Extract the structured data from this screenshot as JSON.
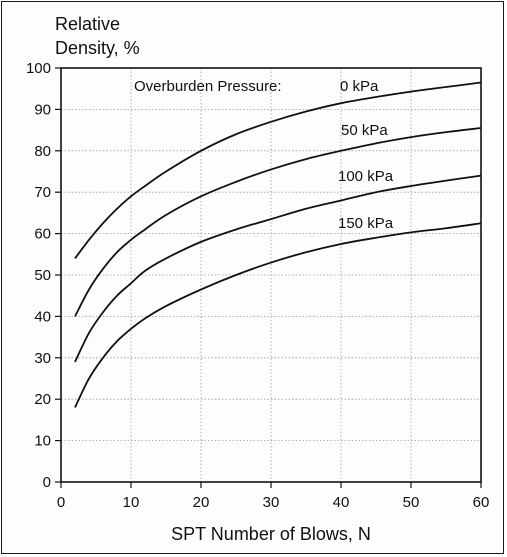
{
  "chart_data": {
    "type": "line",
    "title_lines": [
      "Relative",
      "Density,  %"
    ],
    "xlabel": "SPT Number of Blows,  N",
    "ylabel": "Relative Density, %",
    "xlim": [
      0,
      60
    ],
    "ylim": [
      0,
      100
    ],
    "xticks": [
      0,
      10,
      20,
      30,
      40,
      50,
      60
    ],
    "yticks": [
      0,
      10,
      20,
      30,
      40,
      50,
      60,
      70,
      80,
      90,
      100
    ],
    "grid": true,
    "legend_title": "Overburden Pressure:",
    "series": [
      {
        "name": "0 kPa",
        "x": [
          2,
          4,
          6,
          8,
          10,
          12,
          15,
          20,
          25,
          30,
          35,
          40,
          45,
          50,
          55,
          60
        ],
        "y": [
          54,
          58.5,
          62.5,
          66,
          69,
          71.5,
          75,
          80,
          84,
          87,
          89.5,
          91.5,
          93,
          94.3,
          95.4,
          96.5
        ]
      },
      {
        "name": "50 kPa",
        "x": [
          2,
          4,
          6,
          8,
          10,
          12,
          15,
          20,
          25,
          30,
          35,
          40,
          45,
          50,
          55,
          60
        ],
        "y": [
          40,
          46.5,
          51.5,
          55.5,
          58.5,
          61,
          64.5,
          69,
          72.5,
          75.5,
          78,
          80,
          81.8,
          83.3,
          84.5,
          85.5
        ]
      },
      {
        "name": "100 kPa",
        "x": [
          2,
          4,
          6,
          8,
          10,
          12,
          15,
          20,
          25,
          30,
          35,
          40,
          45,
          50,
          55,
          60
        ],
        "y": [
          29,
          36,
          41,
          45,
          48,
          51,
          54,
          58,
          61,
          63.5,
          66,
          68,
          70,
          71.5,
          72.8,
          74
        ]
      },
      {
        "name": "150 kPa",
        "x": [
          2,
          4,
          6,
          8,
          10,
          12,
          15,
          20,
          25,
          30,
          35,
          40,
          45,
          50,
          55,
          60
        ],
        "y": [
          18,
          25,
          30,
          34,
          37,
          39.5,
          42.5,
          46.5,
          50,
          53,
          55.5,
          57.5,
          59,
          60.3,
          61.3,
          62.5
        ]
      }
    ],
    "annotations": [
      "Overburden Pressure:",
      "0 kPa",
      "50 kPa",
      "100 kPa",
      "150 kPa"
    ]
  }
}
